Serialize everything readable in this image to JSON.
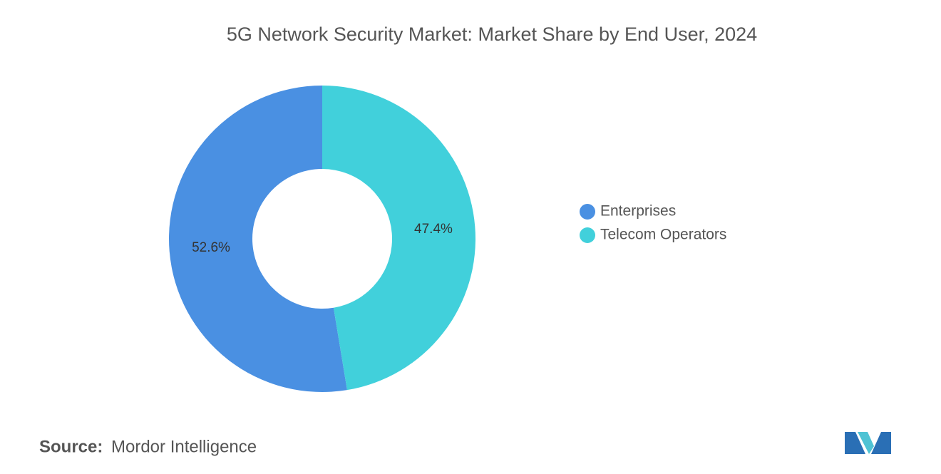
{
  "chart_data": {
    "type": "pie",
    "title": "5G Network Security Market: Market Share by End User, 2024",
    "categories": [
      "Enterprises",
      "Telecom Operators"
    ],
    "values": [
      52.6,
      47.4
    ],
    "value_labels": [
      "52.6%",
      "47.4%"
    ],
    "colors": [
      "#4a90e2",
      "#41d0db"
    ],
    "legend": "right"
  },
  "source": {
    "label": "Source:",
    "name": "Mordor Intelligence"
  }
}
